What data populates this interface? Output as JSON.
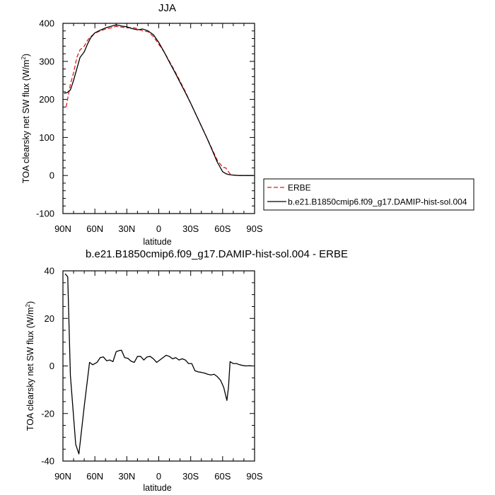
{
  "chart_data": [
    {
      "type": "line",
      "title": "JJA",
      "xlabel": "latitude",
      "ylabel": "TOA clearsky net SW flux (W/m",
      "ylabel_sup": "2",
      "ylabel_tail": ")",
      "xlim": [
        90,
        -90
      ],
      "ylim": [
        -100,
        400
      ],
      "xticks": [
        90,
        60,
        30,
        0,
        -30,
        -60,
        -90
      ],
      "xtick_labels": [
        "90N",
        "60N",
        "30N",
        "0",
        "30S",
        "60S",
        "90S"
      ],
      "yticks": [
        -100,
        0,
        100,
        200,
        300,
        400
      ],
      "ytick_labels": [
        "-100",
        "0",
        "100",
        "200",
        "300",
        "400"
      ],
      "legend_position": "right",
      "series": [
        {
          "name": "ERBE",
          "color": "#e41a1c",
          "dash": "dashed",
          "x": [
            87,
            85,
            83,
            80,
            77,
            74,
            70,
            67,
            64,
            60,
            55,
            50,
            45,
            40,
            35,
            30,
            25,
            20,
            15,
            10,
            5,
            0,
            -5,
            -10,
            -15,
            -20,
            -25,
            -30,
            -35,
            -40,
            -45,
            -50,
            -55,
            -60,
            -63,
            -65,
            -67,
            -70,
            -75,
            -80,
            -85,
            -89
          ],
          "y": [
            180,
            210,
            240,
            270,
            310,
            330,
            340,
            355,
            365,
            374,
            380,
            385,
            388,
            392,
            390,
            388,
            389,
            386,
            380,
            378,
            365,
            345,
            325,
            300,
            275,
            248,
            220,
            190,
            160,
            130,
            100,
            70,
            40,
            22,
            20,
            12,
            4,
            1,
            0,
            0,
            0,
            0
          ]
        },
        {
          "name": "b.e21.B1850cmip6.f09_g17.DAMIP-hist-sol.004",
          "color": "#000000",
          "dash": "solid",
          "x": [
            89,
            86,
            83,
            80,
            77,
            74,
            70,
            67,
            64,
            60,
            55,
            50,
            45,
            40,
            35,
            30,
            25,
            20,
            15,
            10,
            5,
            0,
            -5,
            -10,
            -15,
            -20,
            -25,
            -30,
            -35,
            -40,
            -45,
            -50,
            -55,
            -60,
            -63,
            -65,
            -67,
            -70,
            -75,
            -80,
            -85,
            -89
          ],
          "y": [
            216,
            218,
            225,
            250,
            280,
            310,
            325,
            345,
            362,
            375,
            382,
            388,
            392,
            396,
            393,
            391,
            386,
            383,
            385,
            380,
            370,
            350,
            325,
            298,
            272,
            245,
            218,
            190,
            160,
            130,
            100,
            68,
            35,
            10,
            5,
            3,
            2,
            1,
            0,
            0,
            0,
            0
          ]
        }
      ]
    },
    {
      "type": "line",
      "title": "b.e21.B1850cmip6.f09_g17.DAMIP-hist-sol.004 - ERBE",
      "xlabel": "latitude",
      "ylabel": "TOA clearsky net SW flux (W/m",
      "ylabel_sup": "2",
      "ylabel_tail": ")",
      "xlim": [
        90,
        -90
      ],
      "ylim": [
        -40,
        40
      ],
      "xticks": [
        90,
        60,
        30,
        0,
        -30,
        -60,
        -90
      ],
      "xtick_labels": [
        "90N",
        "60N",
        "30N",
        "0",
        "30S",
        "60S",
        "90S"
      ],
      "yticks": [
        -40,
        -20,
        0,
        20,
        40
      ],
      "ytick_labels": [
        "-40",
        "-20",
        "0",
        "20",
        "40"
      ],
      "series": [
        {
          "color": "#000000",
          "dash": "solid",
          "x": [
            88,
            85.5,
            83,
            78,
            75,
            70,
            65,
            62,
            58,
            55,
            52,
            49,
            46,
            43,
            40,
            37,
            35,
            32,
            29,
            26,
            23,
            20,
            17,
            14,
            11,
            8,
            5,
            2,
            -1,
            -4,
            -7,
            -10,
            -13,
            -16,
            -19,
            -22,
            -25,
            -28,
            -31,
            -34,
            -37,
            -40,
            -43,
            -46,
            -49,
            -52,
            -55,
            -58,
            -61,
            -64,
            -65.5,
            -67,
            -70,
            -73,
            -76,
            -79,
            -82,
            -85,
            -88
          ],
          "y": [
            38.8,
            37.5,
            -4,
            -33,
            -37,
            -17,
            1.5,
            0.5,
            1.5,
            3.5,
            3.8,
            2.2,
            2.5,
            1.8,
            6,
            6.5,
            6.6,
            3.5,
            3.2,
            2,
            1.5,
            4,
            4,
            2.5,
            3.8,
            4,
            3,
            1.5,
            2.5,
            3.5,
            4.5,
            4,
            3,
            3.5,
            2.5,
            3,
            2.5,
            1,
            1,
            -2,
            -2.5,
            -2.7,
            -3,
            -3.5,
            -3.8,
            -3.5,
            -4.5,
            -6,
            -9,
            -14.5,
            -9,
            1.8,
            1,
            1,
            0.5,
            0.2,
            0,
            0.1,
            0
          ]
        }
      ]
    }
  ]
}
